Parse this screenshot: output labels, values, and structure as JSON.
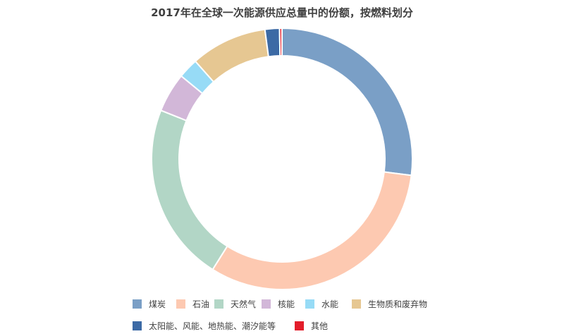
{
  "chart_data": {
    "type": "pie",
    "title": "2017年在全球一次能源供应总量中的份额，按燃料划分",
    "categories": [
      "煤炭",
      "石油",
      "天然气",
      "核能",
      "水能",
      "生物质和废弃物",
      "太阳能、风能、地热能、潮汐能等",
      "其他"
    ],
    "values": [
      27.1,
      32.0,
      22.2,
      4.9,
      2.5,
      9.5,
      1.8,
      0.3
    ],
    "colors": [
      "#7a9fc6",
      "#fdc9b1",
      "#b2d6c6",
      "#d2b7d8",
      "#97dbf6",
      "#e6c792",
      "#3c6aa5",
      "#e31d2b"
    ],
    "legend_position": "bottom"
  }
}
